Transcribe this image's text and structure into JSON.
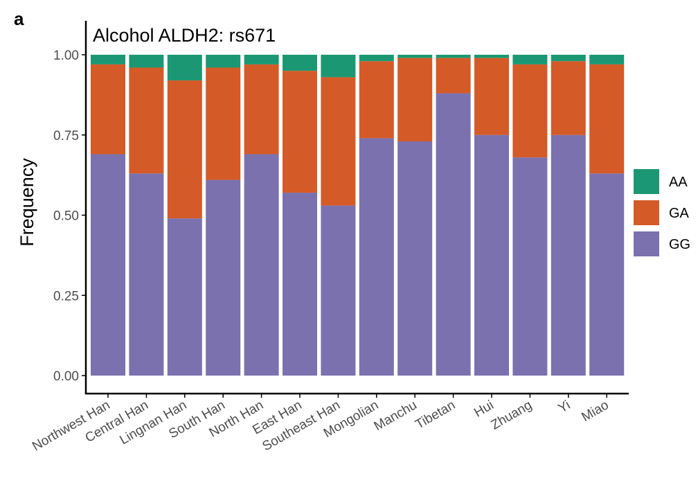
{
  "panel_label": "a",
  "chart_data": {
    "type": "bar",
    "stacked": true,
    "title": "Alcohol ALDH2: rs671",
    "xlabel": "",
    "ylabel": "Frequency",
    "ylim": [
      0,
      1
    ],
    "yticks": [
      "0.00",
      "0.25",
      "0.50",
      "0.75",
      "1.00"
    ],
    "ytick_values": [
      0,
      0.25,
      0.5,
      0.75,
      1.0
    ],
    "grid": false,
    "legend_position": "right",
    "categories": [
      "Northwest Han",
      "Central Han",
      "Lingnan Han",
      "South Han",
      "North Han",
      "East Han",
      "Southeast Han",
      "Mongolian",
      "Manchu",
      "Tibetan",
      "Hui",
      "Zhuang",
      "Yi",
      "Miao"
    ],
    "series": [
      {
        "name": "GG",
        "color": "#7b71af",
        "values": [
          0.69,
          0.63,
          0.49,
          0.61,
          0.69,
          0.57,
          0.53,
          0.74,
          0.73,
          0.88,
          0.75,
          0.68,
          0.75,
          0.63
        ]
      },
      {
        "name": "GA",
        "color": "#d45a27",
        "values": [
          0.28,
          0.33,
          0.43,
          0.35,
          0.28,
          0.38,
          0.4,
          0.24,
          0.26,
          0.11,
          0.24,
          0.29,
          0.23,
          0.34
        ]
      },
      {
        "name": "AA",
        "color": "#1b9873",
        "values": [
          0.03,
          0.04,
          0.08,
          0.04,
          0.03,
          0.05,
          0.07,
          0.02,
          0.01,
          0.01,
          0.01,
          0.03,
          0.02,
          0.03
        ]
      }
    ],
    "legend_order": [
      "AA",
      "GA",
      "GG"
    ]
  }
}
